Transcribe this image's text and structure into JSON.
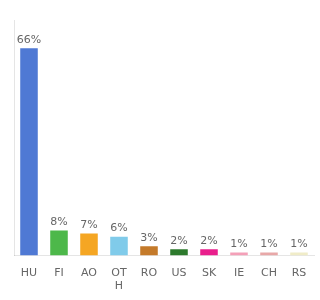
{
  "chart_data": {
    "type": "bar",
    "categories": [
      "HU",
      "FI",
      "AO",
      "OT\nH",
      "RO",
      "US",
      "SK",
      "IE",
      "CH",
      "RS"
    ],
    "values": [
      66,
      8,
      7,
      6,
      3,
      2,
      2,
      1,
      1,
      1
    ],
    "value_labels": [
      "66%",
      "8%",
      "7%",
      "6%",
      "3%",
      "2%",
      "2%",
      "1%",
      "1%",
      "1%"
    ],
    "colors": [
      "#4f79d4",
      "#4db84a",
      "#f5a623",
      "#80cbea",
      "#c47a2a",
      "#2d7a2d",
      "#e91e8c",
      "#f4a0b8",
      "#e8a8a8",
      "#f0ecc8"
    ],
    "ylim": [
      0,
      75
    ],
    "data_labels": true,
    "tick_labels": "x",
    "grid": false
  }
}
